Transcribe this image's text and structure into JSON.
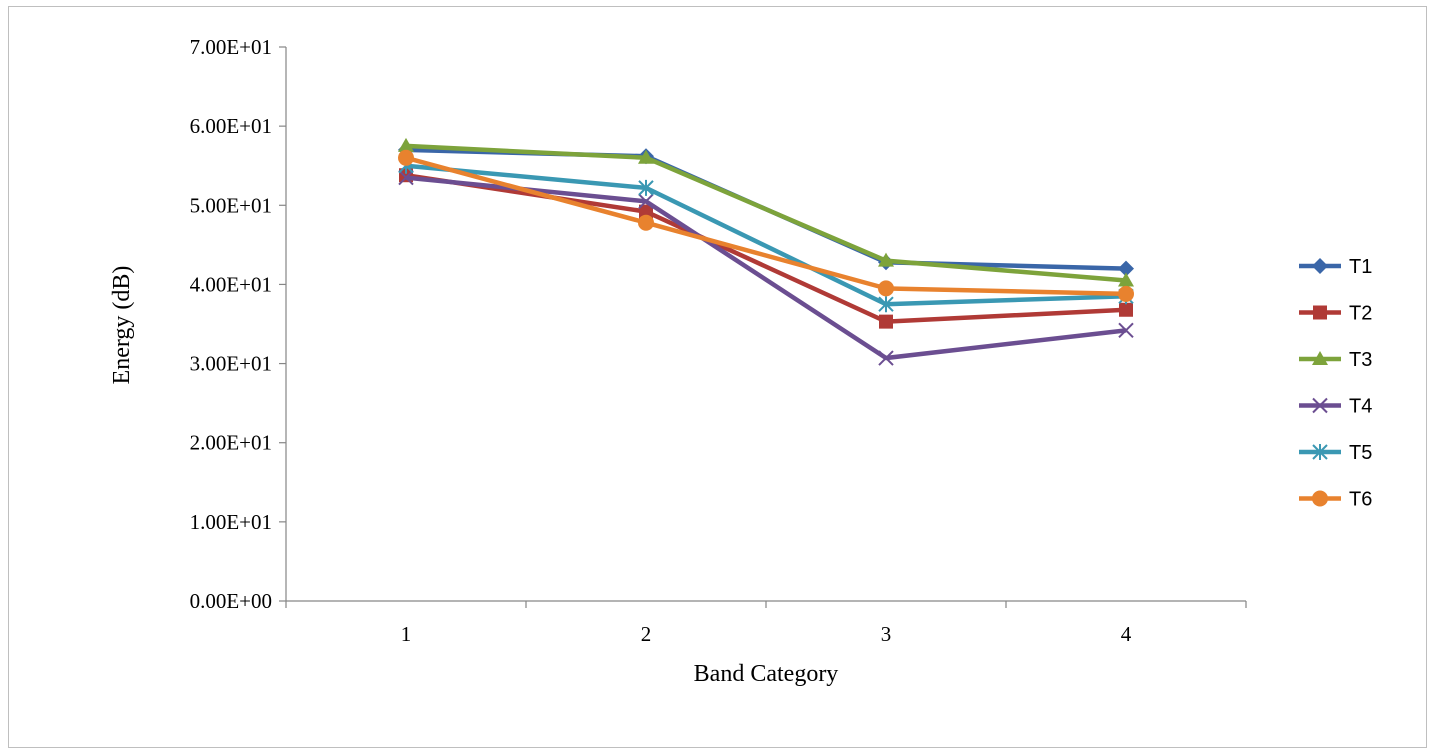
{
  "chart_data": {
    "type": "line",
    "categories": [
      "1",
      "2",
      "3",
      "4"
    ],
    "xlabel": "Band Category",
    "ylabel": "Energy (dB)",
    "ylim": [
      0,
      70
    ],
    "yticks": [
      0,
      10,
      20,
      30,
      40,
      50,
      60,
      70
    ],
    "ytick_labels": [
      "0.00E+00",
      "1.00E+01",
      "2.00E+01",
      "3.00E+01",
      "4.00E+01",
      "5.00E+01",
      "6.00E+01",
      "7.00E+01"
    ],
    "grid": false,
    "legend_position": "right",
    "series": [
      {
        "name": "T1",
        "values": [
          57.0,
          56.2,
          42.8,
          42.0
        ],
        "color": "#3A66A8",
        "marker": "diamond"
      },
      {
        "name": "T2",
        "values": [
          53.8,
          49.2,
          35.3,
          36.8
        ],
        "color": "#B03A36",
        "marker": "square"
      },
      {
        "name": "T3",
        "values": [
          57.5,
          56.0,
          43.0,
          40.5
        ],
        "color": "#7DA33B",
        "marker": "triangle"
      },
      {
        "name": "T4",
        "values": [
          53.5,
          50.5,
          30.7,
          34.2
        ],
        "color": "#6B4E91",
        "marker": "x"
      },
      {
        "name": "T5",
        "values": [
          55.0,
          52.2,
          37.5,
          38.5
        ],
        "color": "#3A98B3",
        "marker": "star"
      },
      {
        "name": "T6",
        "values": [
          56.0,
          47.8,
          39.5,
          38.8
        ],
        "color": "#E8822E",
        "marker": "circle"
      }
    ]
  }
}
